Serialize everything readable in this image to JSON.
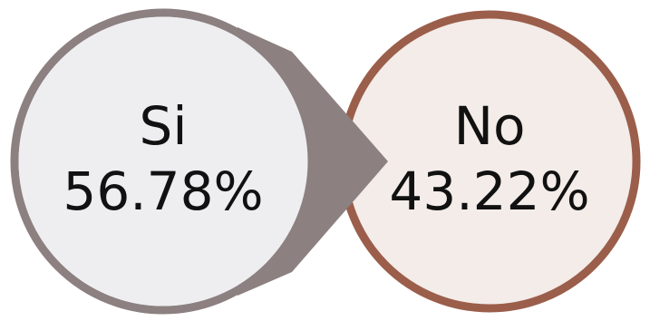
{
  "options": [
    {
      "label": "Si",
      "percent": "56.78%",
      "value": 56.78,
      "ring_color": "#8c8080",
      "fill_color": "#eeeef1"
    },
    {
      "label": "No",
      "percent": "43.22%",
      "value": 43.22,
      "ring_color": "#9b5e4b",
      "fill_color": "#f3ece9"
    }
  ]
}
